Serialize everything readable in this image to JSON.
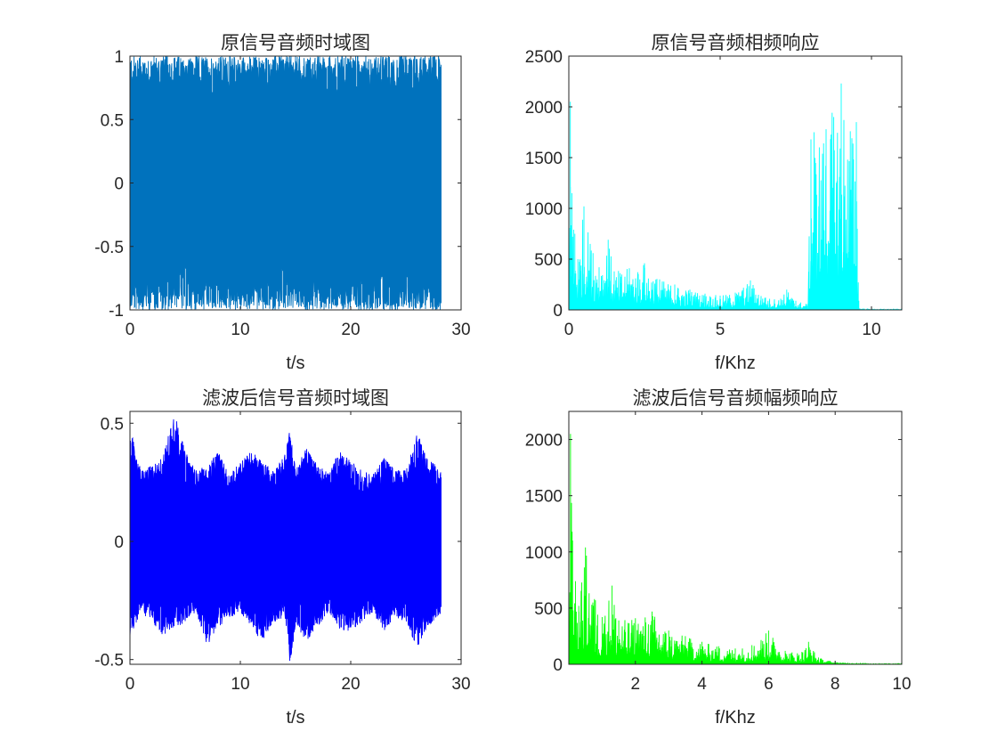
{
  "chart_data": [
    {
      "type": "line",
      "title": "原信号音频时域图",
      "xlabel": "t/s",
      "ylabel": "",
      "xlim": [
        0,
        30
      ],
      "ylim": [
        -1,
        1
      ],
      "xticks": [
        0,
        10,
        20,
        30
      ],
      "xtick_labels": [
        "0",
        "10",
        "20",
        "30"
      ],
      "yticks": [
        -1,
        -0.5,
        0,
        0.5,
        1
      ],
      "ytick_labels": [
        "-1",
        "-0.5",
        "0",
        "0.5",
        "1"
      ],
      "series": [
        {
          "color": "#0072BD",
          "x": [
            0,
            4,
            8,
            12,
            16,
            20,
            24,
            28.2
          ],
          "y_max": [
            1,
            1,
            1,
            1,
            1,
            1,
            1,
            1
          ],
          "y_min": [
            -1,
            -1,
            -1,
            -1,
            -1,
            -1,
            -1,
            -1
          ]
        }
      ],
      "grid": false
    },
    {
      "type": "line",
      "title": "原信号音频相频响应",
      "xlabel": "f/Khz",
      "ylabel": "",
      "xlim": [
        0,
        11
      ],
      "ylim": [
        0,
        2500
      ],
      "xticks": [
        0,
        5,
        10
      ],
      "xtick_labels": [
        "0",
        "5",
        "10"
      ],
      "yticks": [
        0,
        500,
        1000,
        1500,
        2000,
        2500
      ],
      "ytick_labels": [
        "0",
        "500",
        "1000",
        "1500",
        "2000",
        "2500"
      ],
      "series": [
        {
          "color": "#00FFFF",
          "x": [
            0,
            0.05,
            0.1,
            0.2,
            0.3,
            0.5,
            0.8,
            1.0,
            1.3,
            1.5,
            2.0,
            2.5,
            3.0,
            3.5,
            4.0,
            4.5,
            5.0,
            5.5,
            6.0,
            6.5,
            7.0,
            7.2,
            7.5,
            7.9,
            8.0,
            8.1,
            8.5,
            9.0,
            9.3,
            9.5,
            9.6,
            10.0,
            11.0
          ],
          "y": [
            0,
            2050,
            1150,
            750,
            500,
            1020,
            560,
            420,
            690,
            380,
            410,
            460,
            300,
            250,
            200,
            160,
            140,
            170,
            290,
            120,
            110,
            200,
            90,
            60,
            1680,
            1750,
            1780,
            2230,
            1760,
            1850,
            10,
            5,
            5
          ]
        }
      ],
      "grid": false
    },
    {
      "type": "line",
      "title": "滤波后信号音频时域图",
      "xlabel": "t/s",
      "ylabel": "",
      "xlim": [
        0,
        30
      ],
      "ylim": [
        -0.52,
        0.55
      ],
      "xticks": [
        0,
        10,
        20,
        30
      ],
      "xtick_labels": [
        "0",
        "10",
        "20",
        "30"
      ],
      "yticks": [
        -0.5,
        0,
        0.5
      ],
      "ytick_labels": [
        "-0.5",
        "0",
        "0.5"
      ],
      "series": [
        {
          "color": "#0000FF",
          "x": [
            0,
            1,
            2,
            3,
            4,
            5,
            6,
            7,
            8,
            9,
            10,
            11,
            12,
            13,
            14,
            14.5,
            15,
            16,
            17,
            18,
            19,
            20,
            21,
            22,
            23,
            24,
            25,
            26,
            27,
            28.2
          ],
          "y_max": [
            0.48,
            0.3,
            0.32,
            0.36,
            0.55,
            0.38,
            0.3,
            0.32,
            0.38,
            0.28,
            0.34,
            0.38,
            0.34,
            0.3,
            0.36,
            0.48,
            0.3,
            0.4,
            0.32,
            0.3,
            0.38,
            0.34,
            0.3,
            0.28,
            0.36,
            0.3,
            0.3,
            0.46,
            0.36,
            0.3
          ],
          "y_min": [
            -0.4,
            -0.3,
            -0.34,
            -0.4,
            -0.37,
            -0.34,
            -0.3,
            -0.44,
            -0.36,
            -0.33,
            -0.3,
            -0.36,
            -0.43,
            -0.34,
            -0.32,
            -0.52,
            -0.36,
            -0.42,
            -0.36,
            -0.3,
            -0.37,
            -0.38,
            -0.34,
            -0.3,
            -0.38,
            -0.32,
            -0.34,
            -0.45,
            -0.36,
            -0.3
          ]
        }
      ],
      "grid": false
    },
    {
      "type": "line",
      "title": "滤波后信号音频幅频响应",
      "xlabel": "f/Khz",
      "ylabel": "",
      "xlim": [
        0,
        10
      ],
      "ylim": [
        0,
        2250
      ],
      "xticks": [
        2,
        4,
        6,
        8,
        10
      ],
      "xtick_labels": [
        "2",
        "4",
        "6",
        "8",
        "10"
      ],
      "yticks": [
        0,
        500,
        1000,
        1500,
        2000
      ],
      "ytick_labels": [
        "0",
        "500",
        "1000",
        "1500",
        "2000"
      ],
      "series": [
        {
          "color": "#00FF00",
          "x": [
            0,
            0.05,
            0.1,
            0.2,
            0.3,
            0.5,
            0.8,
            1.0,
            1.3,
            1.5,
            2.0,
            2.5,
            3.0,
            3.5,
            4.0,
            4.5,
            5.0,
            5.5,
            6.0,
            6.5,
            7.0,
            7.2,
            7.5,
            8.0,
            8.5,
            9.0,
            10.0
          ],
          "y": [
            0,
            2050,
            1180,
            740,
            520,
            1040,
            570,
            420,
            700,
            390,
            410,
            470,
            300,
            250,
            200,
            160,
            140,
            170,
            300,
            120,
            110,
            200,
            60,
            20,
            10,
            5,
            5
          ]
        }
      ],
      "grid": false
    }
  ]
}
